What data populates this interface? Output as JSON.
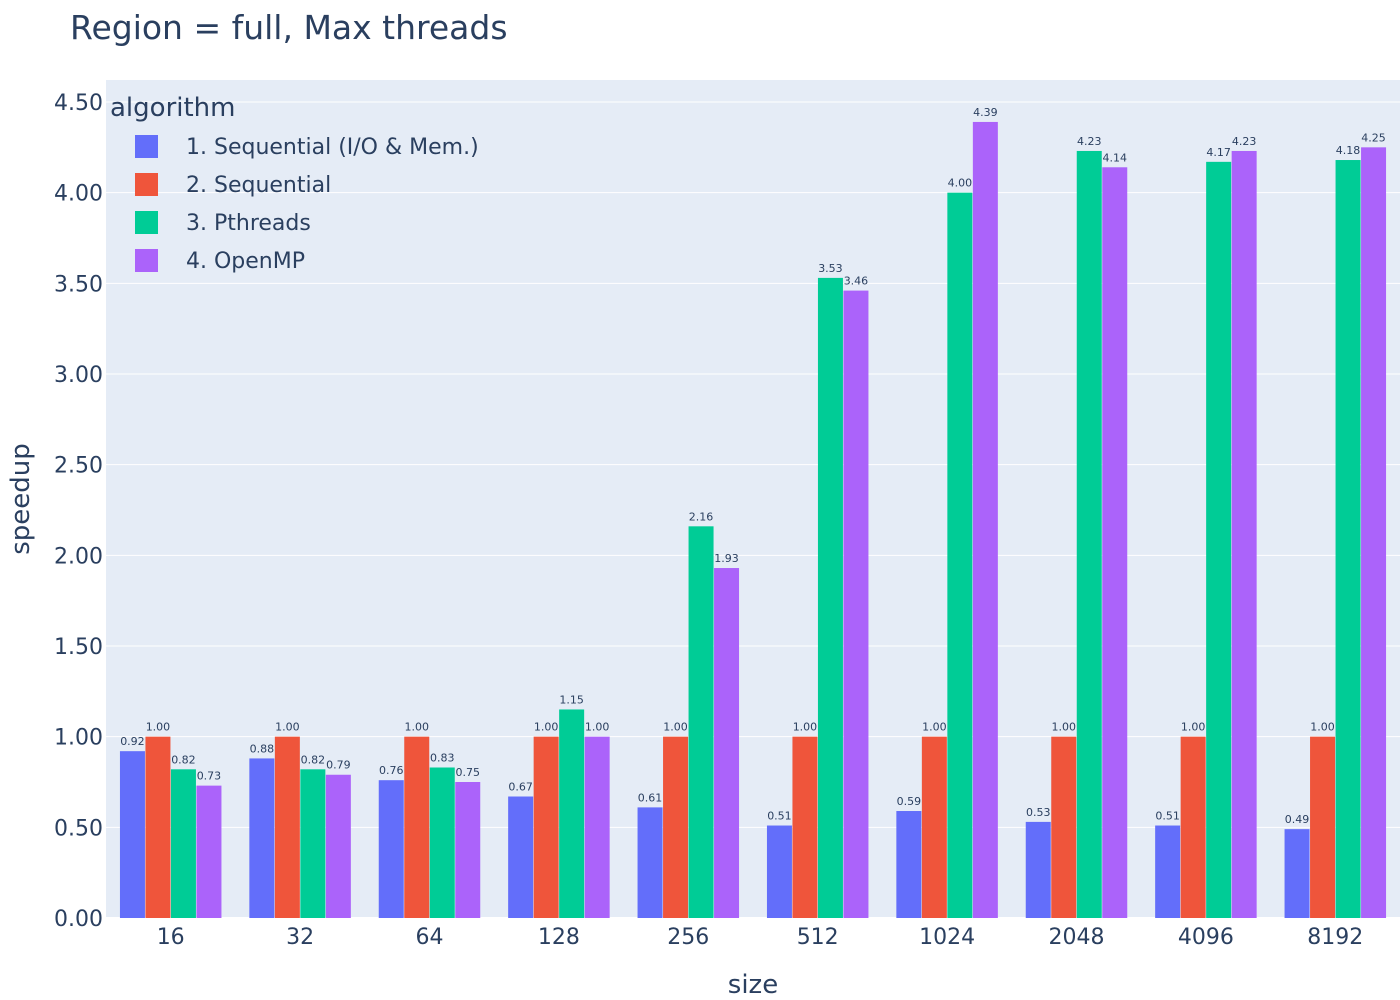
{
  "chart_data": {
    "type": "bar",
    "title": "Region = full, Max threads",
    "xlabel": "size",
    "ylabel": "speedup",
    "ylim": [
      0,
      4.5
    ],
    "yticks": [
      "0.00",
      "0.50",
      "1.00",
      "1.50",
      "2.00",
      "2.50",
      "3.00",
      "3.50",
      "4.00",
      "4.50"
    ],
    "grid": true,
    "legend_title": "algorithm",
    "legend_position": "top-left",
    "categories": [
      "16",
      "32",
      "64",
      "128",
      "256",
      "512",
      "1024",
      "2048",
      "4096",
      "8192"
    ],
    "series": [
      {
        "name": "1. Sequential (I/O & Mem.)",
        "color": "#636efa",
        "values": [
          0.92,
          0.88,
          0.76,
          0.67,
          0.61,
          0.51,
          0.59,
          0.53,
          0.51,
          0.49
        ]
      },
      {
        "name": "2. Sequential",
        "color": "#ef553b",
        "values": [
          1.0,
          1.0,
          1.0,
          1.0,
          1.0,
          1.0,
          1.0,
          1.0,
          1.0,
          1.0
        ]
      },
      {
        "name": "3. Pthreads",
        "color": "#00cc96",
        "values": [
          0.82,
          0.82,
          0.83,
          1.15,
          2.16,
          3.53,
          4.0,
          4.23,
          4.17,
          4.18
        ]
      },
      {
        "name": "4. OpenMP",
        "color": "#ab63fa",
        "values": [
          0.73,
          0.79,
          0.75,
          1.0,
          1.93,
          3.46,
          4.39,
          4.14,
          4.23,
          4.25
        ]
      }
    ],
    "plot_bgcolor": "#e5ecf6",
    "grid_color": "#ffffff"
  }
}
